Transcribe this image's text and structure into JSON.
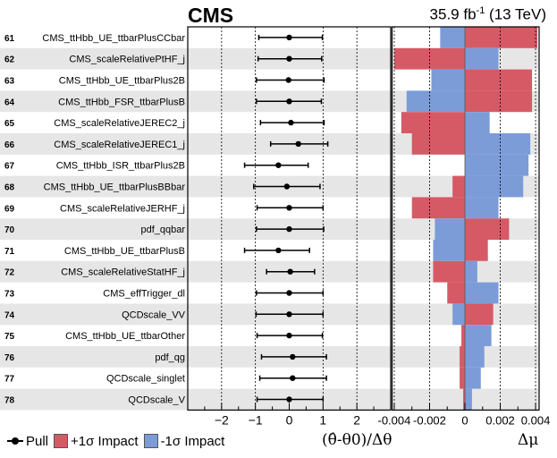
{
  "header": {
    "experiment": "CMS",
    "lumi_value": "35.9 fb",
    "lumi_exp": "-1",
    "energy": "(13 TeV)"
  },
  "legend": {
    "pull_label": "Pull",
    "up_label": "+1σ Impact",
    "down_label": "-1σ Impact"
  },
  "colors": {
    "up": "#d65a66",
    "down": "#7c9cd8",
    "stripe": "#e6e6e6"
  },
  "chart_data": {
    "type": "bar",
    "pull_xlabel": "(θ̂-θ0)/Δθ",
    "impact_xlabel": "Δμ",
    "pull_xlim": [
      -3,
      3
    ],
    "pull_ticks": [
      -2,
      -1,
      0,
      1,
      2
    ],
    "impact_xlim": [
      -0.0042,
      0.0042
    ],
    "impact_ticks": [
      -0.004,
      -0.002,
      0,
      0.002,
      0.004
    ],
    "impact_tick_labels": [
      "-0.004",
      "-0.002",
      "0",
      "0.002",
      "0.004"
    ],
    "rows": [
      {
        "rank": "61",
        "name": "CMS_ttHbb_UE_ttbarPlusCCbar",
        "pull": 0.0,
        "err_lo": 0.9,
        "err_hi": 0.98,
        "up": 0.0041,
        "down": -0.0014
      },
      {
        "rank": "62",
        "name": "CMS_scaleRelativePtHF_j",
        "pull": 0.0,
        "err_lo": 0.92,
        "err_hi": 0.96,
        "up": -0.004,
        "down": 0.0019
      },
      {
        "rank": "63",
        "name": "CMS_ttHbb_UE_ttbarPlus2B",
        "pull": -0.02,
        "err_lo": 0.95,
        "err_hi": 1.05,
        "up": 0.0038,
        "down": -0.0019
      },
      {
        "rank": "64",
        "name": "CMS_ttHbb_FSR_ttbarPlusB",
        "pull": 0.0,
        "err_lo": 0.97,
        "err_hi": 0.95,
        "up": 0.0038,
        "down": -0.0033
      },
      {
        "rank": "65",
        "name": "CMS_scaleRelativeJEREC2_j",
        "pull": 0.05,
        "err_lo": 0.9,
        "err_hi": 0.98,
        "up": -0.0036,
        "down": 0.0014
      },
      {
        "rank": "66",
        "name": "CMS_scaleRelativeJEREC1_j",
        "pull": 0.27,
        "err_lo": 0.82,
        "err_hi": 0.87,
        "up": -0.003,
        "down": 0.0037
      },
      {
        "rank": "67",
        "name": "CMS_ttHbb_ISR_ttbarPlus2B",
        "pull": -0.32,
        "err_lo": 1.0,
        "err_hi": 0.88,
        "up": 0.0006,
        "down": 0.0036
      },
      {
        "rank": "68",
        "name": "CMS_ttHbb_UE_ttbarPlusBBbar",
        "pull": -0.07,
        "err_lo": 0.98,
        "err_hi": 0.98,
        "up": -0.0007,
        "down": 0.0033
      },
      {
        "rank": "69",
        "name": "CMS_scaleRelativeJERHF_j",
        "pull": 0.0,
        "err_lo": 0.95,
        "err_hi": 1.0,
        "up": -0.003,
        "down": 0.0019
      },
      {
        "rank": "70",
        "name": "pdf_qqbar",
        "pull": 0.0,
        "err_lo": 0.97,
        "err_hi": 1.02,
        "up": 0.0025,
        "down": -0.0017
      },
      {
        "rank": "71",
        "name": "CMS_ttHbb_UE_ttbarPlusB",
        "pull": -0.32,
        "err_lo": 1.0,
        "err_hi": 0.92,
        "up": 0.0013,
        "down": -0.0018
      },
      {
        "rank": "72",
        "name": "CMS_scaleRelativeStatHF_j",
        "pull": 0.03,
        "err_lo": 0.7,
        "err_hi": 0.72,
        "up": -0.0018,
        "down": 0.0007
      },
      {
        "rank": "73",
        "name": "CMS_effTrigger_dl",
        "pull": 0.0,
        "err_lo": 0.97,
        "err_hi": 1.0,
        "up": -0.001,
        "down": 0.0019
      },
      {
        "rank": "74",
        "name": "QCDscale_VV",
        "pull": 0.0,
        "err_lo": 0.98,
        "err_hi": 1.0,
        "up": 0.0016,
        "down": -0.0007
      },
      {
        "rank": "75",
        "name": "CMS_ttHbb_UE_ttbarOther",
        "pull": 0.0,
        "err_lo": 0.95,
        "err_hi": 0.98,
        "up": -0.0002,
        "down": 0.0015
      },
      {
        "rank": "76",
        "name": "pdf_qg",
        "pull": 0.1,
        "err_lo": 0.92,
        "err_hi": 1.0,
        "up": -0.0003,
        "down": 0.0011
      },
      {
        "rank": "77",
        "name": "QCDscale_singlet",
        "pull": 0.1,
        "err_lo": 0.97,
        "err_hi": 1.0,
        "up": -0.0003,
        "down": 0.0009
      },
      {
        "rank": "78",
        "name": "QCDscale_V",
        "pull": 0.0,
        "err_lo": 0.95,
        "err_hi": 1.0,
        "up": -0.0001,
        "down": 0.0004
      }
    ]
  }
}
